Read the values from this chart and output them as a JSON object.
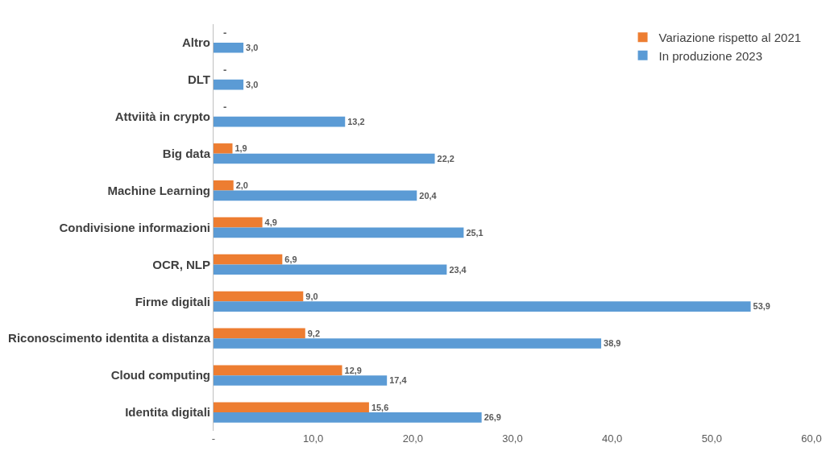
{
  "chart_data": {
    "type": "bar",
    "orientation": "horizontal",
    "categories": [
      "Altro",
      "DLT",
      "Attviità in crypto",
      "Big data",
      "Machine Learning",
      "Condivisione informazioni",
      "OCR, NLP",
      "Firme digitali",
      "Riconoscimento identita a distanza",
      "Cloud computing",
      "Identita digitali"
    ],
    "series": [
      {
        "name": "Variazione rispetto al 2021",
        "color": "#ed7d31",
        "values": [
          null,
          null,
          null,
          1.9,
          2.0,
          4.9,
          6.9,
          9.0,
          9.2,
          12.9,
          15.6
        ],
        "value_labels": [
          "-",
          "-",
          "-",
          "1,9",
          "2,0",
          "4,9",
          "6,9",
          "9,0",
          "9,2",
          "12,9",
          "15,6"
        ]
      },
      {
        "name": "In produzione 2023",
        "color": "#5b9bd5",
        "values": [
          3.0,
          3.0,
          13.2,
          22.2,
          20.4,
          25.1,
          23.4,
          53.9,
          38.9,
          17.4,
          26.9
        ],
        "value_labels": [
          "3,0",
          "3,0",
          "13,2",
          "22,2",
          "20,4",
          "25,1",
          "23,4",
          "53,9",
          "38,9",
          "17,4",
          "26,9"
        ]
      }
    ],
    "xlim": [
      0,
      60
    ],
    "xticks": [
      {
        "value": 0,
        "label": "-"
      },
      {
        "value": 10,
        "label": "10,0"
      },
      {
        "value": 20,
        "label": "20,0"
      },
      {
        "value": 30,
        "label": "30,0"
      },
      {
        "value": 40,
        "label": "40,0"
      },
      {
        "value": 50,
        "label": "50,0"
      },
      {
        "value": 60,
        "label": "60,0"
      }
    ],
    "legend": "top right"
  }
}
